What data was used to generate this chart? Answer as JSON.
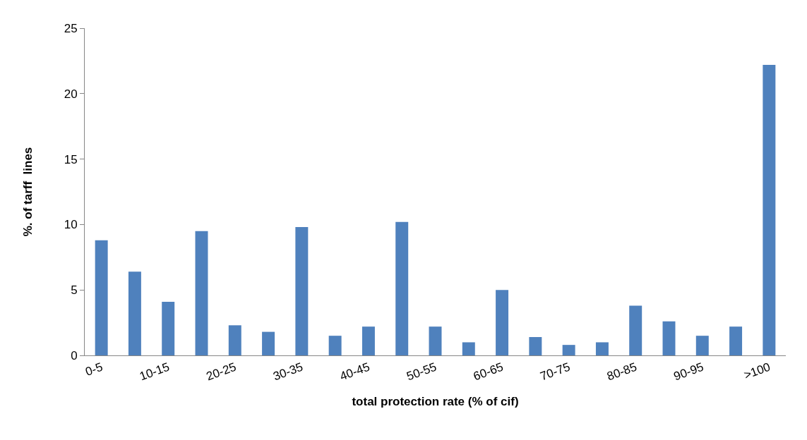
{
  "chart_data": {
    "type": "bar",
    "xlabel": "total protection rate (% of cif)",
    "ylabel": "%. of tarff  lines",
    "categories": [
      "0-5",
      null,
      "10-15",
      null,
      "20-25",
      null,
      "30-35",
      null,
      "40-45",
      null,
      "50-55",
      null,
      "60-65",
      null,
      "70-75",
      null,
      "80-85",
      null,
      "90-95",
      null,
      ">100"
    ],
    "values": [
      8.8,
      6.4,
      4.1,
      9.5,
      2.3,
      1.8,
      9.8,
      1.5,
      2.2,
      10.2,
      2.2,
      1.0,
      5.0,
      1.4,
      0.8,
      1.0,
      3.8,
      2.6,
      1.5,
      2.2,
      22.2
    ],
    "color": "#4f81bd",
    "ylim": [
      0,
      25
    ],
    "yticks": [
      0,
      5,
      10,
      15,
      20,
      25
    ],
    "grid": false,
    "legend": false
  }
}
